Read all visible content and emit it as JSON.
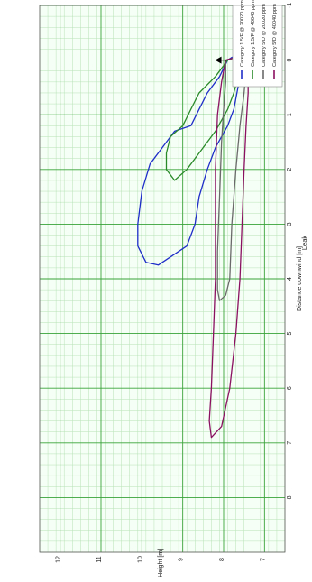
{
  "chart_data": {
    "type": "line",
    "title": "Leak",
    "xlabel": "Distance downwind [m]",
    "ylabel": "Cloud Height [m]",
    "xlim": [
      -1,
      9
    ],
    "ylim": [
      6.5,
      12.5
    ],
    "x_ticks": [
      -1,
      0,
      1,
      2,
      3,
      4,
      5,
      6,
      7,
      8
    ],
    "y_ticks": [
      7,
      8,
      9,
      10,
      11,
      12
    ],
    "grid": true,
    "rotated": "90deg-clockwise",
    "legend_position": "top-right",
    "series": [
      {
        "name": "Category 1.5/F @ 20020 ppm",
        "color": "#1f2ec8",
        "points": [
          [
            0,
            7.9
          ],
          [
            0.3,
            8.1
          ],
          [
            0.6,
            8.4
          ],
          [
            0.9,
            8.6
          ],
          [
            1.2,
            8.8
          ],
          [
            1.3,
            9.2
          ],
          [
            1.5,
            9.4
          ],
          [
            1.9,
            9.8
          ],
          [
            2.4,
            10.0
          ],
          [
            3.0,
            10.1
          ],
          [
            3.4,
            10.1
          ],
          [
            3.7,
            9.9
          ],
          [
            3.75,
            9.6
          ],
          [
            3.4,
            8.9
          ],
          [
            3.0,
            8.7
          ],
          [
            2.5,
            8.6
          ],
          [
            2.0,
            8.4
          ],
          [
            1.6,
            8.2
          ],
          [
            1.2,
            7.9
          ],
          [
            0.9,
            7.75
          ],
          [
            0.5,
            7.65
          ],
          [
            0.25,
            7.55
          ],
          [
            0.1,
            7.45
          ],
          [
            0.05,
            7.4
          ],
          [
            0.0,
            7.45
          ],
          [
            -0.1,
            7.6
          ],
          [
            -0.05,
            7.8
          ],
          [
            0,
            7.9
          ]
        ]
      },
      {
        "name": "Category 1.5/F @ 40040 ppm",
        "color": "#2a8a2a",
        "points": [
          [
            0,
            7.9
          ],
          [
            0.3,
            8.2
          ],
          [
            0.6,
            8.6
          ],
          [
            0.9,
            8.8
          ],
          [
            1.2,
            9.0
          ],
          [
            1.4,
            9.3
          ],
          [
            1.7,
            9.4
          ],
          [
            2.0,
            9.4
          ],
          [
            2.2,
            9.2
          ],
          [
            2.0,
            8.9
          ],
          [
            1.7,
            8.6
          ],
          [
            1.3,
            8.2
          ],
          [
            0.9,
            7.9
          ],
          [
            0.6,
            7.75
          ],
          [
            0.3,
            7.65
          ],
          [
            0.1,
            7.6
          ],
          [
            0.0,
            7.55
          ],
          [
            -0.05,
            7.7
          ],
          [
            0,
            7.9
          ]
        ]
      },
      {
        "name": "Category 5/D @ 20020 ppm",
        "color": "#6a6a6a",
        "points": [
          [
            0,
            7.95
          ],
          [
            0.4,
            7.95
          ],
          [
            0.9,
            8.0
          ],
          [
            1.5,
            8.05
          ],
          [
            2.5,
            8.1
          ],
          [
            3.5,
            8.15
          ],
          [
            4.2,
            8.15
          ],
          [
            4.4,
            8.1
          ],
          [
            4.3,
            7.95
          ],
          [
            4.0,
            7.85
          ],
          [
            3.0,
            7.8
          ],
          [
            2.0,
            7.7
          ],
          [
            1.2,
            7.6
          ],
          [
            0.6,
            7.5
          ],
          [
            0.2,
            7.45
          ],
          [
            0.0,
            7.5
          ],
          [
            -0.05,
            7.7
          ],
          [
            0,
            7.95
          ]
        ]
      },
      {
        "name": "Category 5/D @ 40040 ppm",
        "color": "#8a1060",
        "points": [
          [
            0,
            7.95
          ],
          [
            0.4,
            8.05
          ],
          [
            1.0,
            8.15
          ],
          [
            2.0,
            8.2
          ],
          [
            3.0,
            8.2
          ],
          [
            4.0,
            8.2
          ],
          [
            5.0,
            8.25
          ],
          [
            6.0,
            8.3
          ],
          [
            6.6,
            8.35
          ],
          [
            6.9,
            8.3
          ],
          [
            6.7,
            8.05
          ],
          [
            6.0,
            7.85
          ],
          [
            5.0,
            7.7
          ],
          [
            4.0,
            7.6
          ],
          [
            3.0,
            7.55
          ],
          [
            2.0,
            7.5
          ],
          [
            1.2,
            7.45
          ],
          [
            0.6,
            7.4
          ],
          [
            0.2,
            7.4
          ],
          [
            0.0,
            7.45
          ],
          [
            -0.05,
            7.7
          ],
          [
            0,
            7.95
          ]
        ]
      }
    ],
    "annotations": [
      {
        "type": "arrow",
        "text": "",
        "x": 0,
        "y": 7.9,
        "color": "#000000"
      }
    ]
  }
}
